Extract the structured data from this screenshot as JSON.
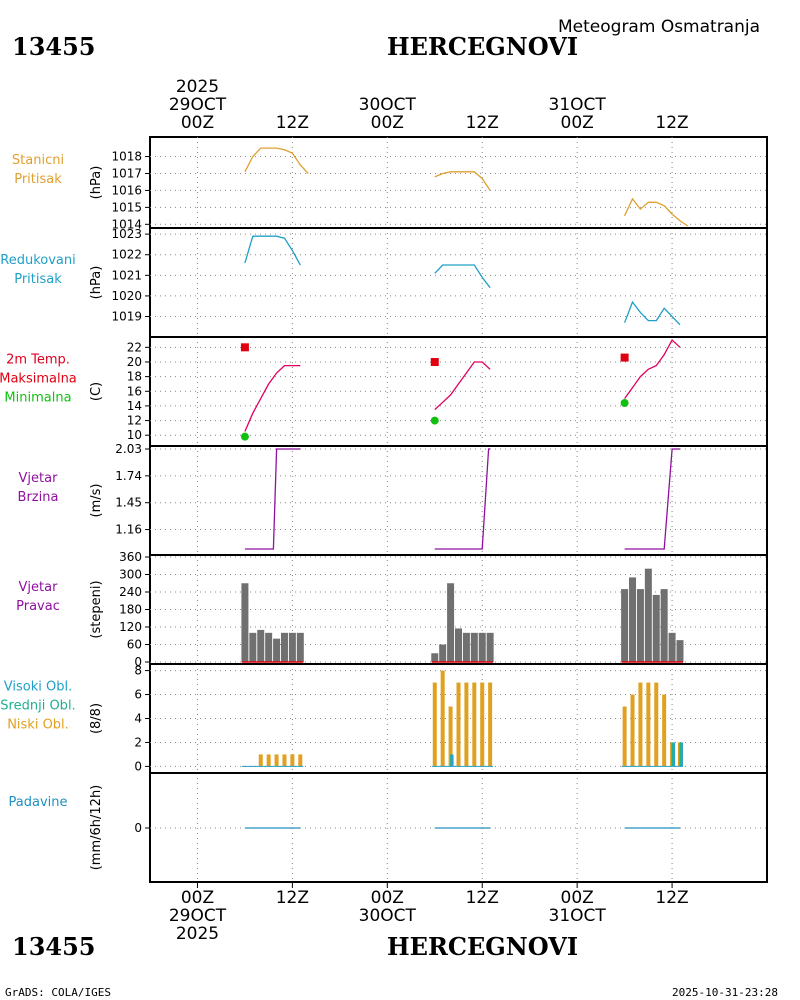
{
  "header": {
    "station_id": "13455",
    "station_name": "HERCEGNOVI",
    "chart_title": "Meteogram Osmatranja"
  },
  "footer": {
    "credit": "GrADS: COLA/IGES",
    "timestamp": "2025-10-31-23:28"
  },
  "colors": {
    "pressure": "#e0a030",
    "reduced": "#20a0c8",
    "temp_label": "#e00020",
    "tmax": "#e00010",
    "tmin": "#10c010",
    "wind": "#9010a0",
    "bars": "#707070",
    "low_cloud": "#e0a020",
    "mid_cloud": "#20b090",
    "high_cloud": "#30a0d0",
    "precip_label": "#2090c0"
  },
  "chart_data": {
    "type": "line",
    "x_unit": "hours since 2025-10-29 00Z",
    "x_range": [
      -6,
      72
    ],
    "time_axis": {
      "top_year": "2025",
      "top_ticks": [
        {
          "h": 0,
          "day": "29OCT",
          "hour": "00Z"
        },
        {
          "h": 12,
          "hour": "12Z"
        },
        {
          "h": 24,
          "day": "30OCT",
          "hour": "00Z"
        },
        {
          "h": 36,
          "hour": "12Z"
        },
        {
          "h": 48,
          "day": "31OCT",
          "hour": "00Z"
        },
        {
          "h": 60,
          "hour": "12Z"
        }
      ],
      "bottom_year": "2025",
      "bottom_ticks": [
        {
          "h": 0,
          "day": "29OCT",
          "hour": "00Z"
        },
        {
          "h": 12,
          "hour": "12Z"
        },
        {
          "h": 24,
          "day": "30OCT",
          "hour": "00Z"
        },
        {
          "h": 36,
          "hour": "12Z"
        },
        {
          "h": 48,
          "day": "31OCT",
          "hour": "00Z"
        },
        {
          "h": 60,
          "hour": "12Z"
        }
      ]
    },
    "panels": [
      {
        "id": "station-pressure",
        "label": [
          "Stanicni",
          "Pritisak"
        ],
        "label_color": "#e0a030",
        "unit": "(hPa)",
        "ylim": [
          1013.9,
          1018.8
        ],
        "yticks": [
          1014,
          1015,
          1016,
          1017,
          1018
        ],
        "series": [
          {
            "name": "Stanicni Pritisak",
            "color": "#e0a030",
            "segments": [
              [
                [
                  6,
                  1017.1
                ],
                [
                  7,
                  1018
                ],
                [
                  8,
                  1018.5
                ],
                [
                  9,
                  1018.5
                ],
                [
                  10,
                  1018.5
                ],
                [
                  11,
                  1018.4
                ],
                [
                  12,
                  1018.2
                ],
                [
                  13,
                  1017.5
                ],
                [
                  14,
                  1017.0
                ]
              ],
              [
                [
                  30,
                  1016.8
                ],
                [
                  31,
                  1017.0
                ],
                [
                  32,
                  1017.1
                ],
                [
                  33,
                  1017.1
                ],
                [
                  34,
                  1017.1
                ],
                [
                  35,
                  1017.1
                ],
                [
                  36,
                  1016.7
                ],
                [
                  37,
                  1016.0
                ]
              ],
              [
                [
                  54,
                  1014.5
                ],
                [
                  55,
                  1015.5
                ],
                [
                  56,
                  1014.9
                ],
                [
                  57,
                  1015.3
                ],
                [
                  58,
                  1015.3
                ],
                [
                  59,
                  1015.1
                ],
                [
                  60,
                  1014.6
                ],
                [
                  61,
                  1014.2
                ],
                [
                  62,
                  1013.9
                ]
              ]
            ]
          }
        ]
      },
      {
        "id": "reduced-pressure",
        "label": [
          "Redukovani",
          "Pritisak"
        ],
        "label_color": "#20a0c8",
        "unit": "(hPa)",
        "ylim": [
          1018.2,
          1023.2
        ],
        "yticks": [
          1019,
          1020,
          1021,
          1022,
          1023
        ],
        "series": [
          {
            "name": "Redukovani Pritisak",
            "color": "#20a0c8",
            "segments": [
              [
                [
                  6,
                  1021.6
                ],
                [
                  7,
                  1022.9
                ],
                [
                  8,
                  1022.9
                ],
                [
                  9,
                  1022.9
                ],
                [
                  10,
                  1022.9
                ],
                [
                  11,
                  1022.8
                ],
                [
                  12,
                  1022.2
                ],
                [
                  13,
                  1021.5
                ]
              ],
              [
                [
                  30,
                  1021.1
                ],
                [
                  31,
                  1021.5
                ],
                [
                  32,
                  1021.5
                ],
                [
                  33,
                  1021.5
                ],
                [
                  34,
                  1021.5
                ],
                [
                  35,
                  1021.5
                ],
                [
                  36,
                  1020.9
                ],
                [
                  37,
                  1020.4
                ]
              ],
              [
                [
                  54,
                  1018.7
                ],
                [
                  55,
                  1019.7
                ],
                [
                  56,
                  1019.2
                ],
                [
                  57,
                  1018.8
                ],
                [
                  58,
                  1018.8
                ],
                [
                  59,
                  1019.4
                ],
                [
                  60,
                  1019.0
                ],
                [
                  61,
                  1018.6
                ]
              ]
            ]
          }
        ]
      },
      {
        "id": "temperature",
        "label": [
          "2m Temp.",
          "Maksimalna",
          "Minimalna"
        ],
        "label_colors": [
          "#e00020",
          "#e00010",
          "#10c010"
        ],
        "unit": "(C)",
        "ylim": [
          8.8,
          23
        ],
        "yticks": [
          10,
          12,
          14,
          16,
          18,
          20,
          22
        ],
        "series": [
          {
            "name": "2m Temp.",
            "color": "#e00060",
            "segments": [
              [
                [
                  6,
                  10.5
                ],
                [
                  7,
                  13.0
                ],
                [
                  8,
                  15.0
                ],
                [
                  9,
                  17.0
                ],
                [
                  10,
                  18.5
                ],
                [
                  11,
                  19.5
                ],
                [
                  12,
                  19.5
                ],
                [
                  13,
                  19.5
                ]
              ],
              [
                [
                  30,
                  13.5
                ],
                [
                  31,
                  14.5
                ],
                [
                  32,
                  15.5
                ],
                [
                  33,
                  17.0
                ],
                [
                  34,
                  18.5
                ],
                [
                  35,
                  20.0
                ],
                [
                  36,
                  20.0
                ],
                [
                  37,
                  19.0
                ]
              ],
              [
                [
                  54,
                  15.0
                ],
                [
                  55,
                  16.5
                ],
                [
                  56,
                  18.0
                ],
                [
                  57,
                  19.0
                ],
                [
                  58,
                  19.5
                ],
                [
                  59,
                  21.0
                ],
                [
                  60,
                  23.0
                ],
                [
                  61,
                  22.0
                ]
              ]
            ]
          }
        ],
        "tmax": [
          {
            "h": 6,
            "v": 22.0
          },
          {
            "h": 30,
            "v": 20.0
          },
          {
            "h": 54,
            "v": 20.6
          }
        ],
        "tmin": [
          {
            "h": 6,
            "v": 9.8
          },
          {
            "h": 30,
            "v": 12.0
          },
          {
            "h": 54,
            "v": 14.4
          }
        ]
      },
      {
        "id": "wind-speed",
        "label": [
          "Vjetar",
          "Brzina"
        ],
        "label_color": "#9010a0",
        "unit": "(m/s)",
        "ylim": [
          0.95,
          2.03
        ],
        "yticks": [
          1.16,
          1.45,
          1.74,
          2.03
        ],
        "series": [
          {
            "name": "Vjetar Brzina",
            "color": "#9010a0",
            "segments": [
              [
                [
                  6,
                  0.95
                ],
                [
                  9,
                  0.95
                ],
                [
                  9.6,
                  0.95
                ],
                [
                  10,
                  2.03
                ],
                [
                  13,
                  2.03
                ]
              ],
              [
                [
                  30,
                  0.95
                ],
                [
                  33,
                  0.95
                ],
                [
                  36,
                  0.95
                ],
                [
                  36.8,
                  2.03
                ],
                [
                  37,
                  2.03
                ]
              ],
              [
                [
                  54,
                  0.95
                ],
                [
                  58,
                  0.95
                ],
                [
                  59,
                  0.95
                ],
                [
                  60,
                  2.03
                ],
                [
                  61,
                  2.03
                ]
              ]
            ]
          }
        ]
      },
      {
        "id": "wind-direction",
        "label": [
          "Vjetar",
          "Pravac"
        ],
        "label_color": "#9010a0",
        "unit": "(stepeni)",
        "type": "bar",
        "ylim": [
          0,
          360
        ],
        "yticks": [
          0,
          60,
          120,
          180,
          240,
          300,
          360
        ],
        "bars": [
          {
            "h": 6,
            "v": 270
          },
          {
            "h": 7,
            "v": 100
          },
          {
            "h": 8,
            "v": 110
          },
          {
            "h": 9,
            "v": 100
          },
          {
            "h": 10,
            "v": 80
          },
          {
            "h": 11,
            "v": 100
          },
          {
            "h": 12,
            "v": 100
          },
          {
            "h": 13,
            "v": 100
          },
          {
            "h": 30,
            "v": 30
          },
          {
            "h": 31,
            "v": 60
          },
          {
            "h": 32,
            "v": 270
          },
          {
            "h": 33,
            "v": 115
          },
          {
            "h": 34,
            "v": 100
          },
          {
            "h": 35,
            "v": 100
          },
          {
            "h": 36,
            "v": 100
          },
          {
            "h": 37,
            "v": 100
          },
          {
            "h": 54,
            "v": 250
          },
          {
            "h": 55,
            "v": 290
          },
          {
            "h": 56,
            "v": 250
          },
          {
            "h": 57,
            "v": 320
          },
          {
            "h": 58,
            "v": 230
          },
          {
            "h": 59,
            "v": 250
          },
          {
            "h": 60,
            "v": 100
          },
          {
            "h": 61,
            "v": 75
          }
        ]
      },
      {
        "id": "cloud-cover",
        "label": [
          "Visoki Obl.",
          "Srednji Obl.",
          "Niski Obl."
        ],
        "label_colors": [
          "#20a0c8",
          "#20b090",
          "#e0a020"
        ],
        "unit": "(8/8)",
        "type": "bar",
        "ylim": [
          -0.3,
          8.3
        ],
        "yticks": [
          0,
          2,
          4,
          6,
          8
        ],
        "low": [
          {
            "h": 6,
            "v": 0
          },
          {
            "h": 7,
            "v": 0
          },
          {
            "h": 8,
            "v": 1
          },
          {
            "h": 9,
            "v": 1
          },
          {
            "h": 10,
            "v": 1
          },
          {
            "h": 11,
            "v": 1
          },
          {
            "h": 12,
            "v": 1
          },
          {
            "h": 13,
            "v": 1
          },
          {
            "h": 30,
            "v": 7
          },
          {
            "h": 31,
            "v": 8
          },
          {
            "h": 32,
            "v": 5
          },
          {
            "h": 33,
            "v": 7
          },
          {
            "h": 34,
            "v": 7
          },
          {
            "h": 35,
            "v": 7
          },
          {
            "h": 36,
            "v": 7
          },
          {
            "h": 37,
            "v": 7
          },
          {
            "h": 54,
            "v": 5
          },
          {
            "h": 55,
            "v": 6
          },
          {
            "h": 56,
            "v": 7
          },
          {
            "h": 57,
            "v": 7
          },
          {
            "h": 58,
            "v": 7
          },
          {
            "h": 59,
            "v": 6
          },
          {
            "h": 60,
            "v": 2
          },
          {
            "h": 61,
            "v": 2
          }
        ],
        "mid": [
          {
            "h": 32,
            "v": 1
          },
          {
            "h": 60,
            "v": 2
          },
          {
            "h": 61,
            "v": 2
          }
        ],
        "high": [
          {
            "h": 32,
            "v": 1
          },
          {
            "h": 60,
            "v": 2
          },
          {
            "h": 61,
            "v": 2
          }
        ]
      },
      {
        "id": "precipitation",
        "label": [
          "Padavine"
        ],
        "label_color": "#2090c0",
        "unit": "(mm/6h/12h)",
        "ylim": [
          -1,
          1
        ],
        "yticks": [
          0
        ],
        "series": [
          {
            "name": "Padavine",
            "color": "#2090c0",
            "segments": [
              [
                [
                  6,
                  0
                ],
                [
                  13,
                  0
                ]
              ],
              [
                [
                  30,
                  0
                ],
                [
                  37,
                  0
                ]
              ],
              [
                [
                  54,
                  0
                ],
                [
                  61,
                  0
                ]
              ]
            ]
          }
        ]
      }
    ]
  }
}
